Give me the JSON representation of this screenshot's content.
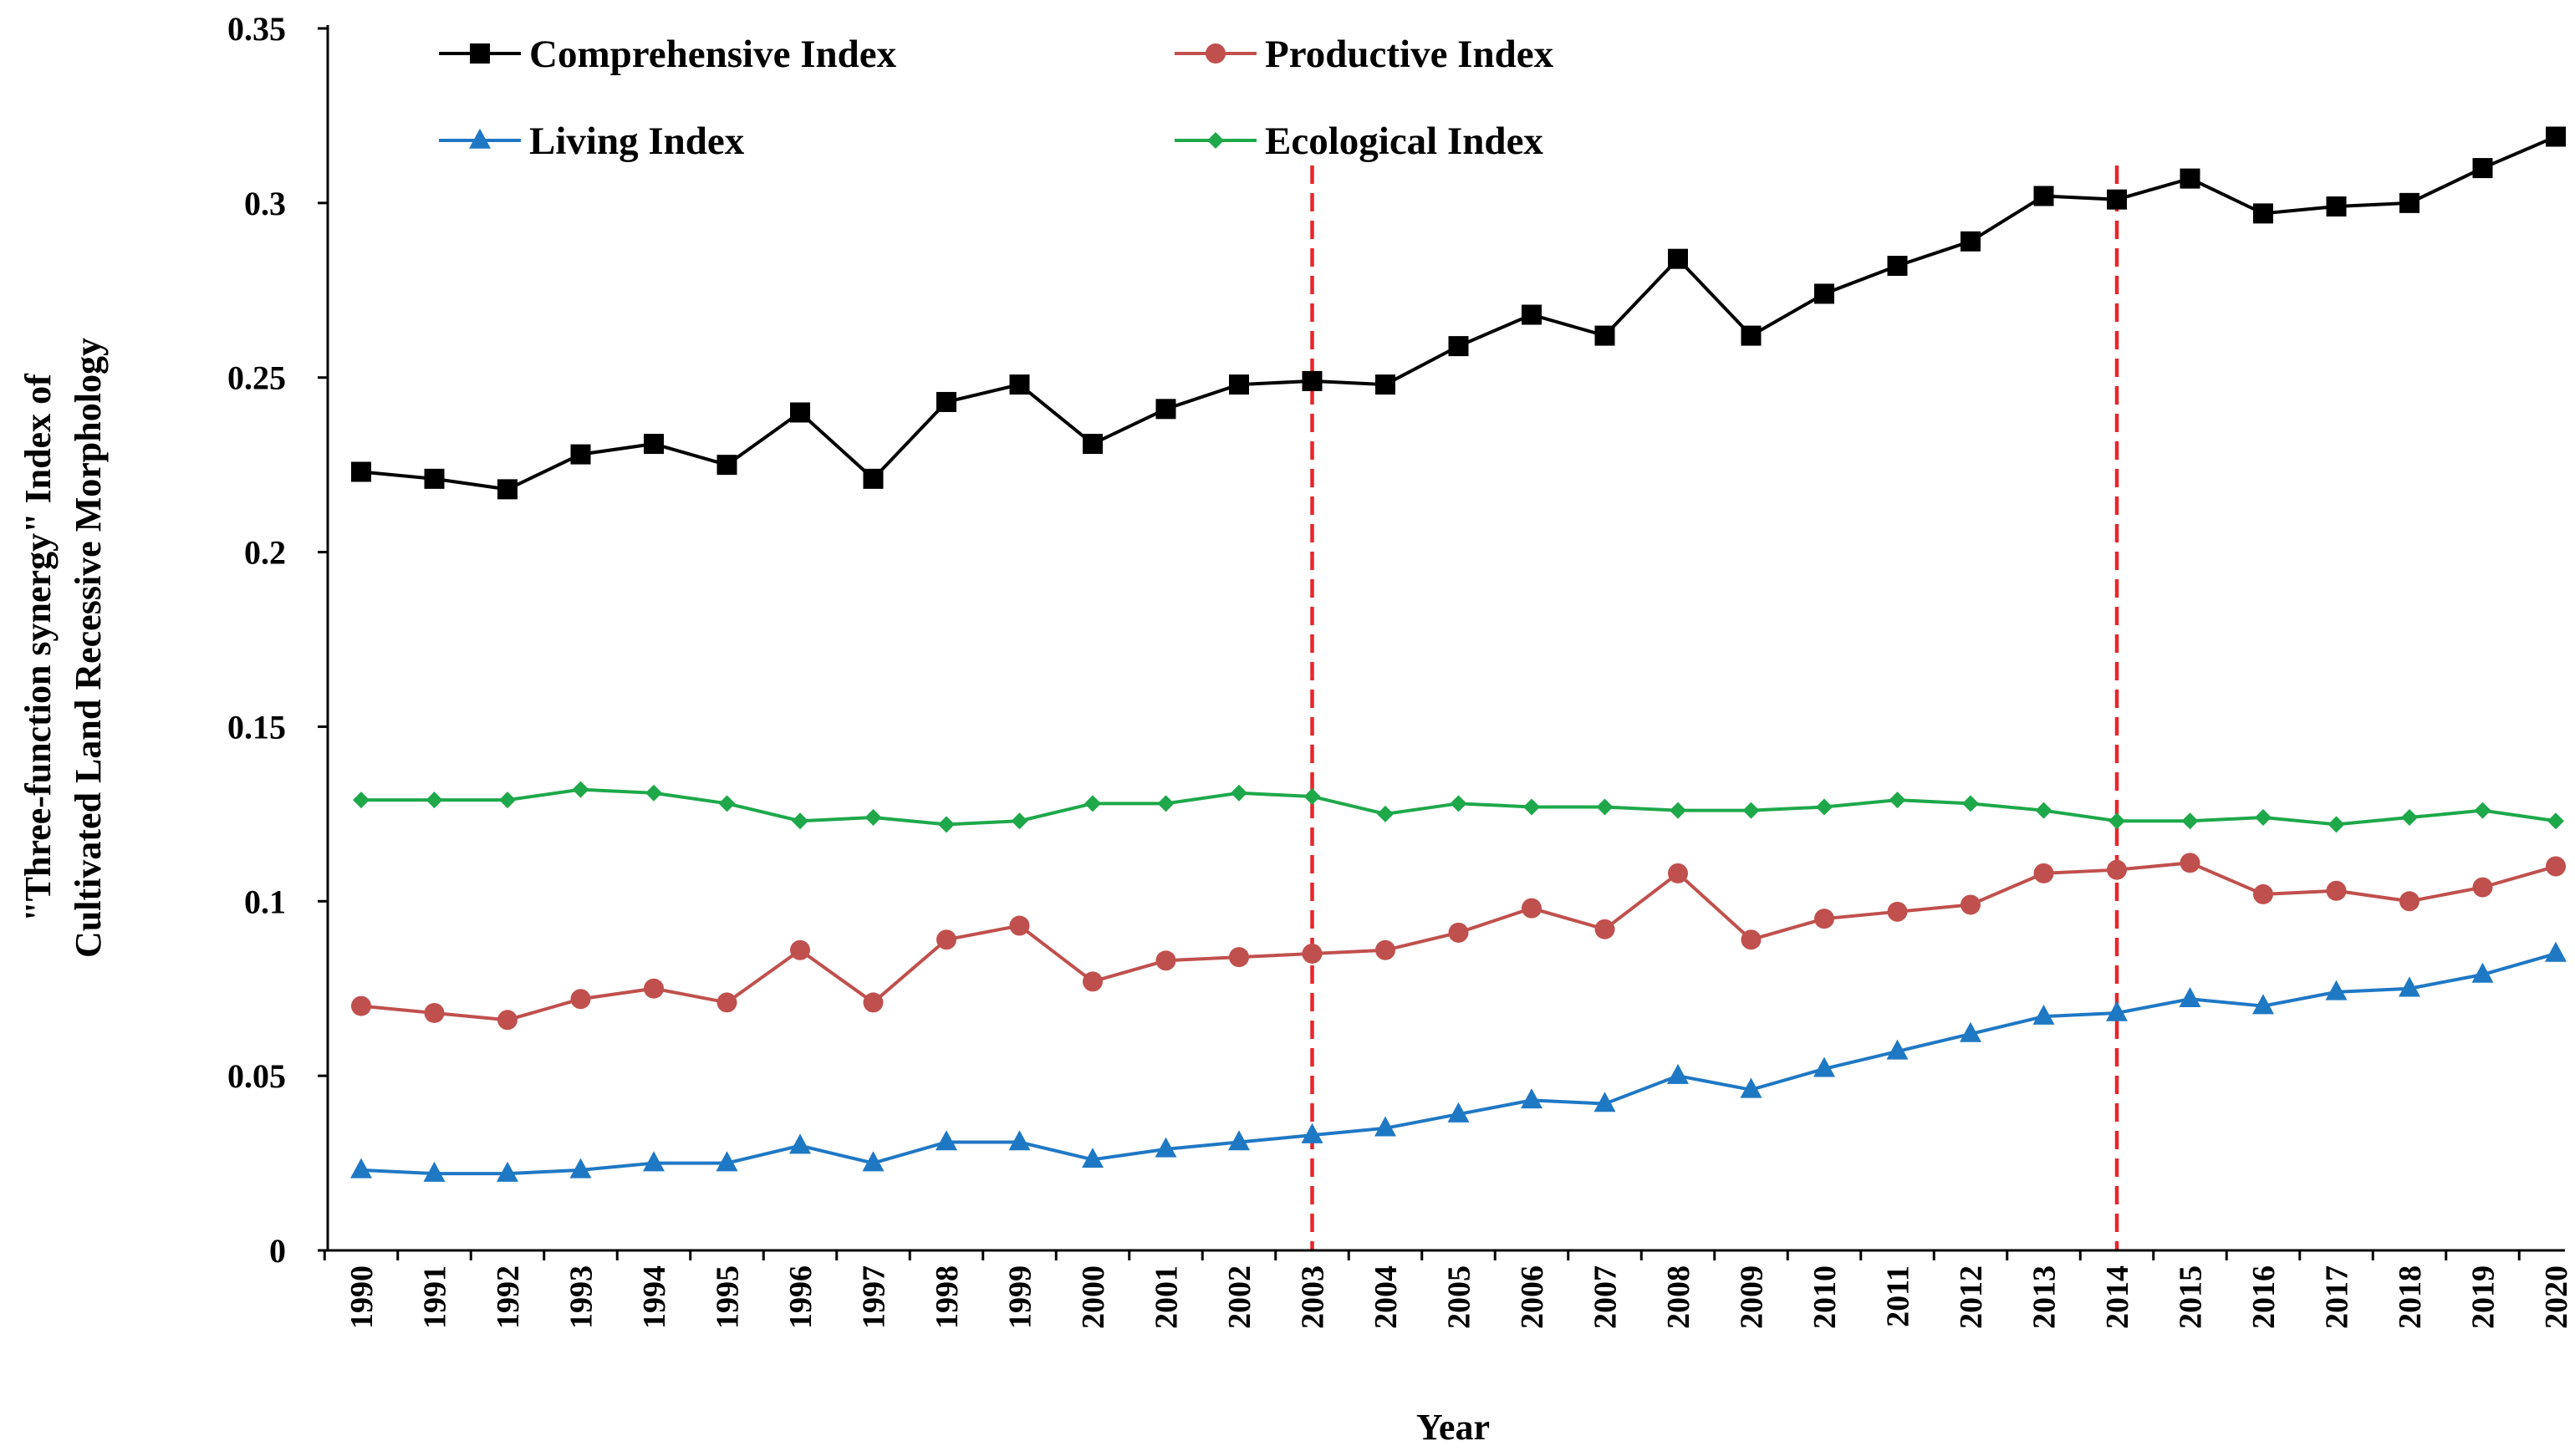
{
  "chart_data": {
    "type": "line",
    "title": "",
    "xlabel": "Year",
    "ylabel_line1": "\"Three-function synergy\" Index of",
    "ylabel_line2": "Cultivated Land Recessive Morphology",
    "ylim": [
      0,
      0.35
    ],
    "yticks": [
      "0",
      "0.05",
      "0.1",
      "0.15",
      "0.2",
      "0.25",
      "0.3",
      "0.35"
    ],
    "ytick_values": [
      0,
      0.05,
      0.1,
      0.15,
      0.2,
      0.25,
      0.3,
      0.35
    ],
    "categories": [
      "1990",
      "1991",
      "1992",
      "1993",
      "1994",
      "1995",
      "1996",
      "1997",
      "1998",
      "1999",
      "2000",
      "2001",
      "2002",
      "2003",
      "2004",
      "2005",
      "2006",
      "2007",
      "2008",
      "2009",
      "2010",
      "2011",
      "2012",
      "2013",
      "2014",
      "2015",
      "2016",
      "2017",
      "2018",
      "2019",
      "2020"
    ],
    "reference_lines": [
      {
        "x": "2003",
        "color": "#e8262b"
      },
      {
        "x": "2014",
        "color": "#e8262b"
      }
    ],
    "legend_position": "top-left",
    "series": [
      {
        "name": "Comprehensive Index",
        "color": "#000000",
        "marker": "square",
        "values": [
          0.223,
          0.221,
          0.218,
          0.228,
          0.231,
          0.225,
          0.24,
          0.221,
          0.243,
          0.248,
          0.231,
          0.241,
          0.248,
          0.249,
          0.248,
          0.259,
          0.268,
          0.262,
          0.284,
          0.262,
          0.274,
          0.282,
          0.289,
          0.302,
          0.301,
          0.307,
          0.297,
          0.299,
          0.3,
          0.31,
          0.319
        ]
      },
      {
        "name": "Productive Index",
        "color": "#c0504d",
        "marker": "circle",
        "values": [
          0.07,
          0.068,
          0.066,
          0.072,
          0.075,
          0.071,
          0.086,
          0.071,
          0.089,
          0.093,
          0.077,
          0.083,
          0.084,
          0.085,
          0.086,
          0.091,
          0.098,
          0.092,
          0.108,
          0.089,
          0.095,
          0.097,
          0.099,
          0.108,
          0.109,
          0.111,
          0.102,
          0.103,
          0.1,
          0.104,
          0.11
        ]
      },
      {
        "name": "Living Index",
        "color": "#1f78c4",
        "marker": "triangle",
        "values": [
          0.023,
          0.022,
          0.022,
          0.023,
          0.025,
          0.025,
          0.03,
          0.025,
          0.031,
          0.031,
          0.026,
          0.029,
          0.031,
          0.033,
          0.035,
          0.039,
          0.043,
          0.042,
          0.05,
          0.046,
          0.052,
          0.057,
          0.062,
          0.067,
          0.068,
          0.072,
          0.07,
          0.074,
          0.075,
          0.079,
          0.085
        ]
      },
      {
        "name": "Ecological Index",
        "color": "#1ea84a",
        "marker": "diamond",
        "values": [
          0.129,
          0.129,
          0.129,
          0.132,
          0.131,
          0.128,
          0.123,
          0.124,
          0.122,
          0.123,
          0.128,
          0.128,
          0.131,
          0.13,
          0.125,
          0.128,
          0.127,
          0.127,
          0.126,
          0.126,
          0.127,
          0.129,
          0.128,
          0.126,
          0.123,
          0.123,
          0.124,
          0.122,
          0.124,
          0.126,
          0.123
        ]
      }
    ]
  }
}
